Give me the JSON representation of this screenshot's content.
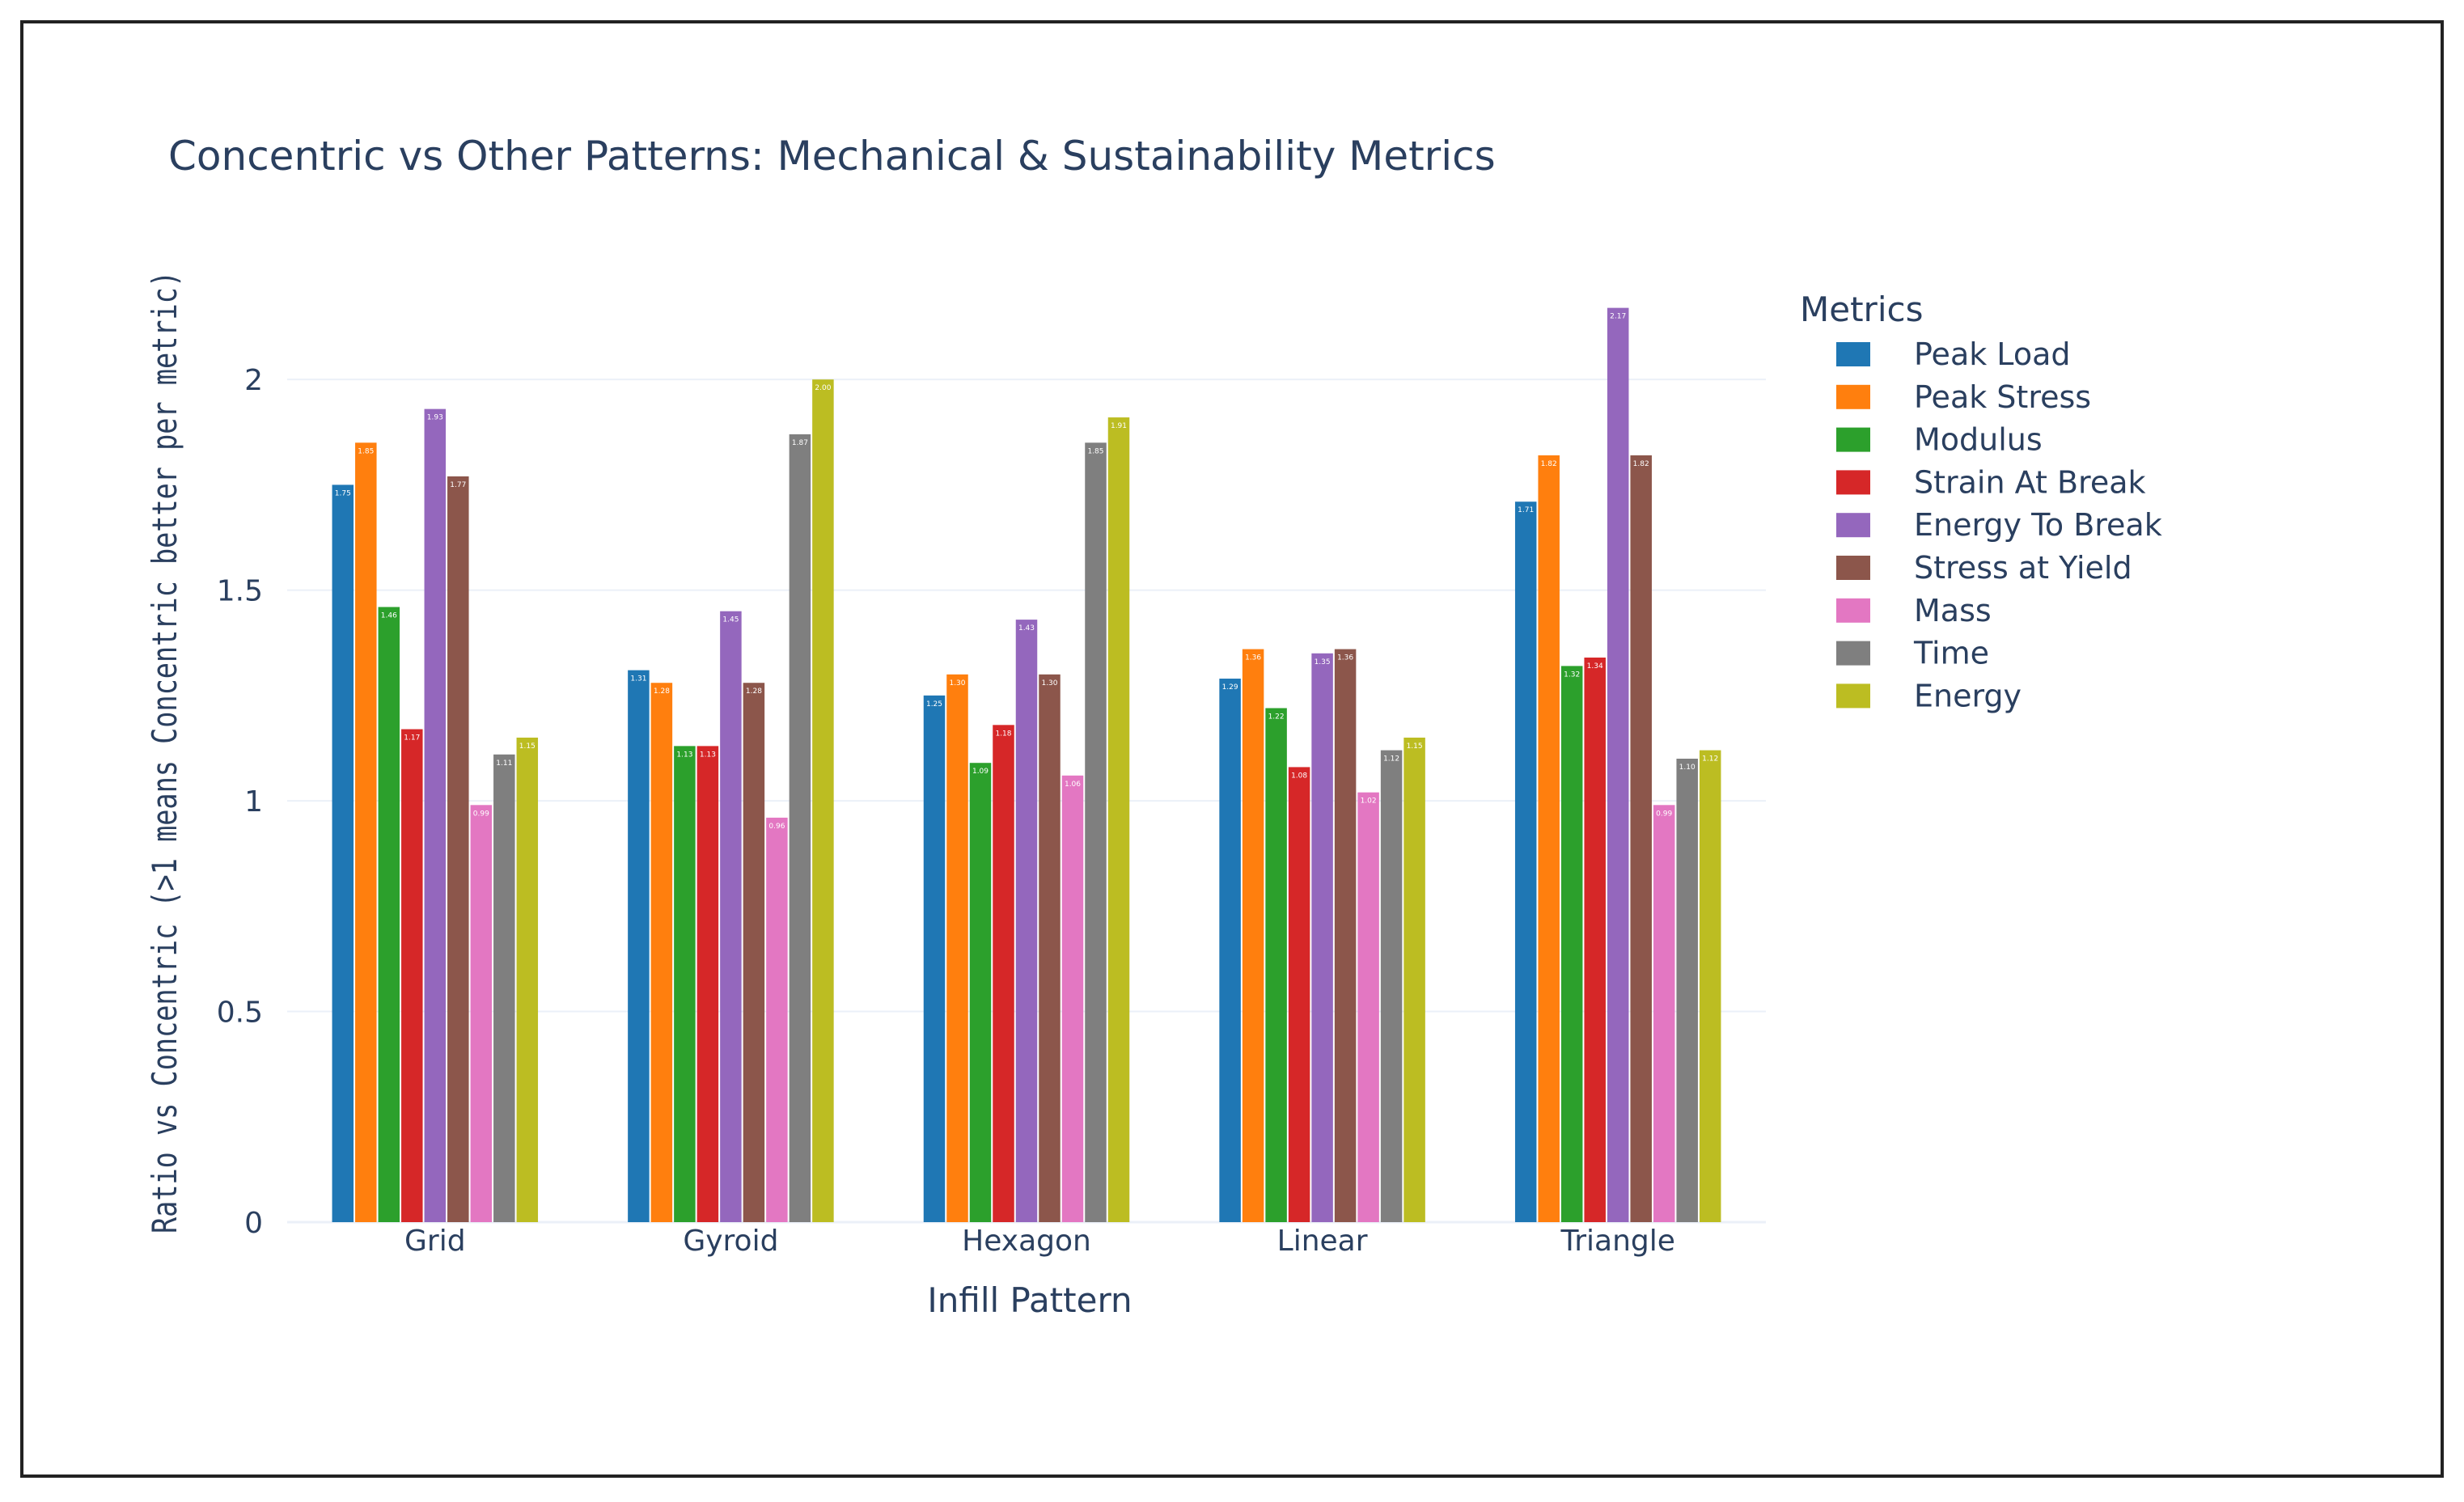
{
  "chart_data": {
    "type": "bar",
    "title": "Concentric vs Other Patterns: Mechanical & Sustainability Metrics",
    "xlabel": "Infill Pattern",
    "ylabel": "Ratio vs Concentric (>1 means Concentric better per metric)",
    "ylim": [
      0,
      2.2
    ],
    "yticks": [
      0,
      0.5,
      1,
      1.5,
      2
    ],
    "ytick_labels": [
      "0",
      "0.5",
      "1",
      "1.5",
      "2"
    ],
    "grid": true,
    "legend_title": "Metrics",
    "legend_position": "right",
    "categories": [
      "Grid",
      "Gyroid",
      "Hexagon",
      "Linear",
      "Triangle"
    ],
    "series": [
      {
        "name": "Peak Load",
        "color": "#1f77b4",
        "values": [
          1.75,
          1.31,
          1.25,
          1.29,
          1.71
        ]
      },
      {
        "name": "Peak Stress",
        "color": "#ff7f0e",
        "values": [
          1.85,
          1.28,
          1.3,
          1.36,
          1.82
        ]
      },
      {
        "name": "Modulus",
        "color": "#2ca02c",
        "values": [
          1.46,
          1.13,
          1.09,
          1.22,
          1.32
        ]
      },
      {
        "name": "Strain At Break",
        "color": "#d62728",
        "values": [
          1.17,
          1.13,
          1.18,
          1.08,
          1.34
        ]
      },
      {
        "name": "Energy To Break",
        "color": "#9467bd",
        "values": [
          1.93,
          1.45,
          1.43,
          1.35,
          2.17
        ]
      },
      {
        "name": "Stress at Yield",
        "color": "#8c564b",
        "values": [
          1.77,
          1.28,
          1.3,
          1.36,
          1.82
        ]
      },
      {
        "name": "Mass",
        "color": "#e377c2",
        "values": [
          0.99,
          0.96,
          1.06,
          1.02,
          0.99
        ]
      },
      {
        "name": "Time",
        "color": "#7f7f7f",
        "values": [
          1.11,
          1.87,
          1.85,
          1.12,
          1.1
        ]
      },
      {
        "name": "Energy",
        "color": "#bcbd22",
        "values": [
          1.15,
          2.0,
          1.91,
          1.15,
          1.12
        ]
      }
    ]
  }
}
